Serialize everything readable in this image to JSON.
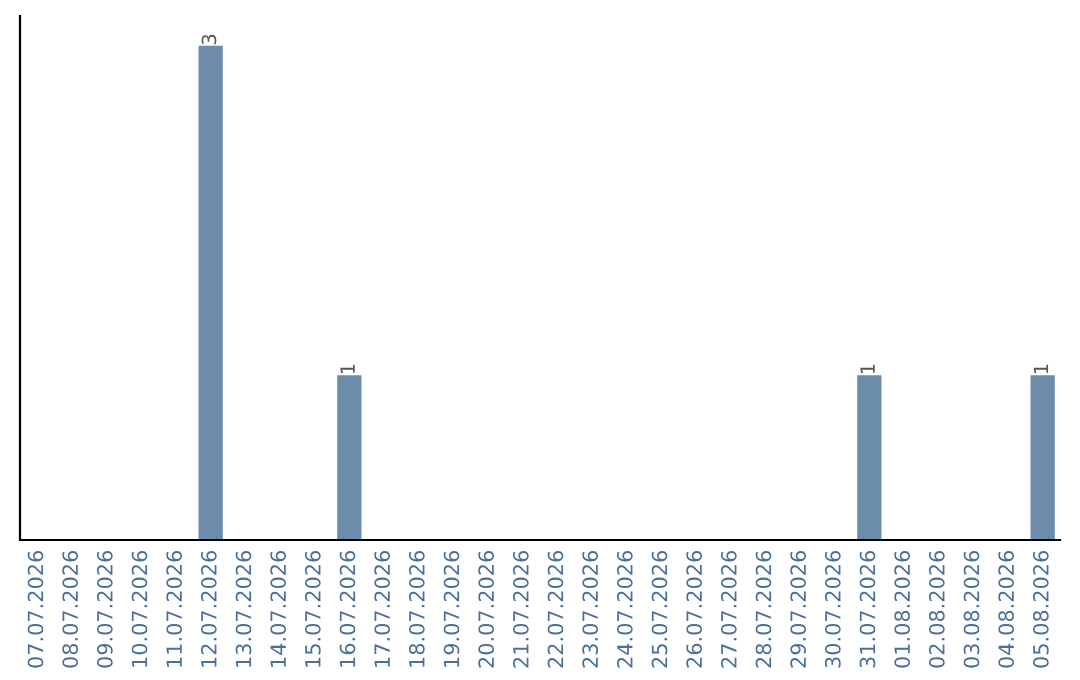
{
  "chart_data": {
    "type": "bar",
    "categories": [
      "07.07.2026",
      "08.07.2026",
      "09.07.2026",
      "10.07.2026",
      "11.07.2026",
      "12.07.2026",
      "13.07.2026",
      "14.07.2026",
      "15.07.2026",
      "16.07.2026",
      "17.07.2026",
      "18.07.2026",
      "19.07.2026",
      "20.07.2026",
      "21.07.2026",
      "22.07.2026",
      "23.07.2026",
      "24.07.2026",
      "25.07.2026",
      "26.07.2026",
      "27.07.2026",
      "28.07.2026",
      "29.07.2026",
      "30.07.2026",
      "31.07.2026",
      "01.08.2026",
      "02.08.2026",
      "03.08.2026",
      "04.08.2026",
      "05.08.2026"
    ],
    "values": [
      0,
      0,
      0,
      0,
      0,
      3,
      0,
      0,
      0,
      1,
      0,
      0,
      0,
      0,
      0,
      0,
      0,
      0,
      0,
      0,
      0,
      0,
      0,
      0,
      1,
      0,
      0,
      0,
      0,
      1
    ],
    "value_labels": [
      null,
      null,
      null,
      null,
      null,
      "3",
      null,
      null,
      null,
      "1",
      null,
      null,
      null,
      null,
      null,
      null,
      null,
      null,
      null,
      null,
      null,
      null,
      null,
      null,
      "1",
      null,
      null,
      null,
      null,
      "1"
    ],
    "color": "#6b8cab",
    "tick_labels": "x",
    "grid": false
  }
}
